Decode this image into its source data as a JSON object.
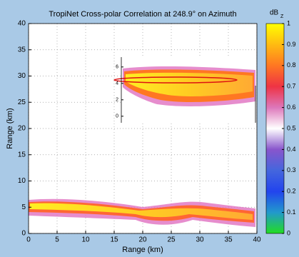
{
  "chart_data": {
    "type": "image",
    "title": "TropiNet Cross-polar Correlation at 248.9° on Azimuth",
    "xlabel": "Range (km)",
    "ylabel": "Range (km)",
    "xlim": [
      0,
      40
    ],
    "xticks": [
      0,
      5,
      10,
      15,
      20,
      25,
      30,
      35,
      40
    ],
    "ylim": [
      0,
      40
    ],
    "yticks": [
      0,
      5,
      10,
      15,
      20,
      25,
      30,
      35,
      40
    ],
    "grid": true,
    "inset": {
      "ylim": [
        -0.8,
        7.2
      ],
      "yticks": [
        0,
        2,
        4,
        6
      ]
    },
    "colorbar": {
      "label": "dB",
      "label_sub": "Z",
      "lim": [
        0,
        1
      ],
      "ticks": [
        0,
        0.1,
        0.2,
        0.3,
        0.4,
        0.5,
        0.6,
        0.7,
        0.8,
        0.9,
        1
      ],
      "colors": [
        "#22dd22",
        "#2299cc",
        "#2244ee",
        "#4466dd",
        "#8855cc",
        "#ffffff",
        "#dd77bb",
        "#ee3344",
        "#ff7722",
        "#ffbb11",
        "#ffff00"
      ]
    }
  }
}
